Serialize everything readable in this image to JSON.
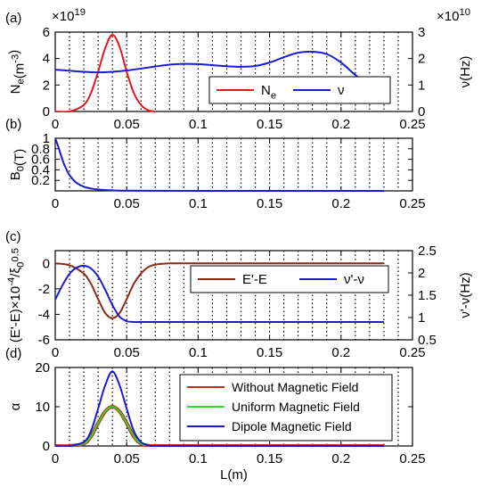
{
  "figure": {
    "xlabel": "L(m)"
  },
  "chart_data": [
    {
      "panel_label": "(a)",
      "type": "line",
      "xlim": [
        0,
        0.25
      ],
      "x_ticks": [
        "0",
        "0.05",
        "0.1",
        "0.15",
        "0.2",
        "0.25"
      ],
      "ylim": [
        0,
        6
      ],
      "y_ticks": [
        "0",
        "2",
        "4",
        "6"
      ],
      "ylabel": "N_e(m^-3)",
      "y_exponent": "×10^19",
      "y2lim": [
        0,
        3
      ],
      "y2_ticks": [
        "0",
        "1",
        "2",
        "3"
      ],
      "y2label": "ν(Hz)",
      "y2_exponent": "×10^10",
      "legend_position": "center-right",
      "grid": "dotted",
      "series": [
        {
          "name": "N_e",
          "color": "#e8141a",
          "axis": "left",
          "x": [
            0.0,
            0.01,
            0.02,
            0.025,
            0.03,
            0.035,
            0.04,
            0.045,
            0.05,
            0.055,
            0.06,
            0.065,
            0.07
          ],
          "y": [
            0.0,
            0.0,
            0.5,
            1.4,
            3.0,
            4.8,
            5.8,
            4.9,
            3.0,
            1.4,
            0.5,
            0.1,
            0.0
          ]
        },
        {
          "name": "ν",
          "color": "#1a1ad6",
          "axis": "right",
          "x": [
            0.0,
            0.01,
            0.02,
            0.03,
            0.04,
            0.05,
            0.06,
            0.07,
            0.08,
            0.09,
            0.1,
            0.11,
            0.12,
            0.13,
            0.14,
            0.15,
            0.16,
            0.17,
            0.18,
            0.19,
            0.2,
            0.21,
            0.22,
            0.23
          ],
          "y": [
            1.58,
            1.54,
            1.5,
            1.48,
            1.5,
            1.55,
            1.62,
            1.7,
            1.77,
            1.8,
            1.79,
            1.75,
            1.71,
            1.69,
            1.72,
            1.85,
            2.05,
            2.22,
            2.26,
            2.17,
            1.85,
            1.38,
            0.98,
            0.68
          ]
        }
      ]
    },
    {
      "panel_label": "(b)",
      "type": "line",
      "xlim": [
        0,
        0.25
      ],
      "x_ticks": [
        "0",
        "0.05",
        "0.1",
        "0.15",
        "0.2",
        "0.25"
      ],
      "ylim": [
        0,
        1
      ],
      "y_ticks": [
        "0.2",
        "0.4",
        "0.6",
        "0.8",
        "1"
      ],
      "ylabel": "B_0(T)",
      "grid": "dotted",
      "series": [
        {
          "name": "",
          "color": "#1a1ad6",
          "x": [
            0.0,
            0.002,
            0.004,
            0.006,
            0.008,
            0.01,
            0.012,
            0.015,
            0.02,
            0.025,
            0.03,
            0.04,
            0.05,
            0.07,
            0.1,
            0.15,
            0.2,
            0.23
          ],
          "y": [
            1.0,
            0.85,
            0.68,
            0.52,
            0.4,
            0.3,
            0.23,
            0.15,
            0.08,
            0.045,
            0.025,
            0.01,
            0.005,
            0.002,
            0.001,
            0.0,
            0.0,
            0.0
          ]
        }
      ]
    },
    {
      "panel_label": "(c)",
      "type": "line",
      "xlim": [
        0,
        0.25
      ],
      "x_ticks": [
        "0",
        "0.05",
        "0.1",
        "0.15",
        "0.2",
        "0.25"
      ],
      "ylim": [
        -6,
        1
      ],
      "y_ticks": [
        "-6",
        "-4",
        "-2",
        "0"
      ],
      "ylabel": "(E'-E)×10^-4/ξ_0^0.5",
      "y2lim": [
        0.5,
        2.5
      ],
      "y2_ticks": [
        "0.5",
        "1",
        "1.5",
        "2",
        "2.5"
      ],
      "y2label": "ν'-ν(Hz)",
      "legend_position": "center-right",
      "grid": "dotted",
      "series": [
        {
          "name": "E'-E",
          "color": "#8b2a12",
          "axis": "left",
          "x": [
            0.0,
            0.01,
            0.02,
            0.025,
            0.03,
            0.035,
            0.04,
            0.045,
            0.05,
            0.055,
            0.06,
            0.065,
            0.07,
            0.08,
            0.1,
            0.15,
            0.23
          ],
          "y": [
            0.0,
            -0.15,
            -0.8,
            -1.6,
            -2.8,
            -3.9,
            -4.3,
            -3.9,
            -2.8,
            -1.6,
            -0.8,
            -0.3,
            -0.1,
            0.0,
            0.0,
            0.0,
            0.0
          ]
        },
        {
          "name": "ν'-ν",
          "color": "#1a1ad6",
          "axis": "right",
          "x": [
            0.0,
            0.005,
            0.01,
            0.015,
            0.02,
            0.025,
            0.03,
            0.035,
            0.04,
            0.045,
            0.05,
            0.055,
            0.06,
            0.07,
            0.08,
            0.1,
            0.15,
            0.23
          ],
          "y": [
            1.4,
            1.72,
            1.98,
            2.12,
            2.16,
            2.1,
            1.92,
            1.62,
            1.28,
            1.02,
            0.92,
            0.9,
            0.9,
            0.9,
            0.9,
            0.9,
            0.9,
            0.9
          ]
        }
      ]
    },
    {
      "panel_label": "(d)",
      "type": "line",
      "xlim": [
        0,
        0.25
      ],
      "x_ticks": [
        "0",
        "0.05",
        "0.1",
        "0.15",
        "0.2",
        "0.25"
      ],
      "ylim": [
        0,
        20
      ],
      "y_ticks": [
        "0",
        "10",
        "20"
      ],
      "ylabel": "α",
      "legend_position": "top-right",
      "grid": "dotted",
      "series": [
        {
          "name": "Without Magnetic Field",
          "color": "#c8261e",
          "x": [
            0.0,
            0.01,
            0.02,
            0.025,
            0.03,
            0.035,
            0.04,
            0.045,
            0.05,
            0.055,
            0.06,
            0.065,
            0.07,
            0.1,
            0.23
          ],
          "y": [
            0.0,
            0.0,
            0.6,
            2.4,
            5.8,
            8.8,
            10.0,
            8.8,
            5.8,
            2.4,
            0.6,
            0.1,
            0.0,
            0.0,
            0.0
          ]
        },
        {
          "name": "Uniform Magnetic Field",
          "color": "#33d62a",
          "x": [
            0.0,
            0.01,
            0.02,
            0.025,
            0.03,
            0.035,
            0.04,
            0.045,
            0.05,
            0.055,
            0.06,
            0.065,
            0.07,
            0.1,
            0.23
          ],
          "y": [
            0.0,
            0.0,
            0.6,
            2.4,
            5.8,
            8.8,
            10.0,
            8.8,
            5.8,
            2.4,
            0.6,
            0.1,
            0.0,
            0.0,
            0.0
          ]
        },
        {
          "name": "Dipole Magnetic Field",
          "color": "#1a1ad6",
          "x": [
            0.0,
            0.01,
            0.02,
            0.025,
            0.03,
            0.035,
            0.04,
            0.045,
            0.05,
            0.055,
            0.06,
            0.065,
            0.07,
            0.1,
            0.23
          ],
          "y": [
            0.0,
            0.0,
            1.0,
            3.8,
            9.5,
            15.5,
            19.0,
            15.5,
            9.5,
            3.8,
            1.0,
            0.15,
            0.0,
            0.0,
            0.0
          ]
        }
      ]
    }
  ]
}
